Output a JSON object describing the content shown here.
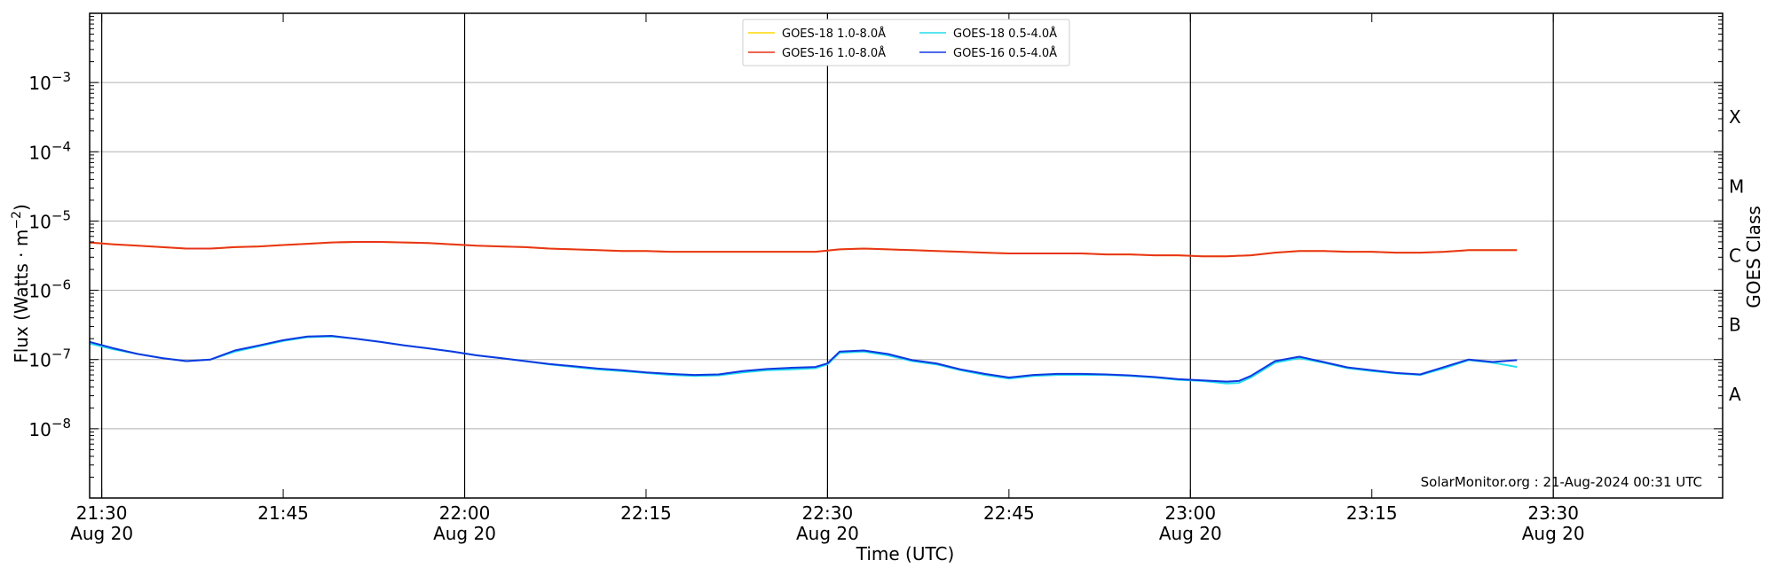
{
  "chart_data": {
    "type": "line",
    "xlabel": "Time (UTC)",
    "ylabel": "Flux (Watts · m",
    "ylabel_sup": "−2",
    "ylabel_close": ")",
    "right_axis_label": "GOES Class",
    "credit": "SolarMonitor.org : 21-Aug-2024 00:31 UTC",
    "y_scale": "log",
    "ylim_exponent": [
      -9,
      -2
    ],
    "xlim": [
      "21:29",
      "23:44"
    ],
    "grid": true,
    "legend_position": "top-center",
    "x_ticks": [
      {
        "t": "21:30",
        "label": "21:30",
        "sublabel": "Aug 20",
        "vline": true
      },
      {
        "t": "21:45",
        "label": "21:45",
        "sublabel": "",
        "vline": false
      },
      {
        "t": "22:00",
        "label": "22:00",
        "sublabel": "Aug 20",
        "vline": true
      },
      {
        "t": "22:15",
        "label": "22:15",
        "sublabel": "",
        "vline": false
      },
      {
        "t": "22:30",
        "label": "22:30",
        "sublabel": "Aug 20",
        "vline": true
      },
      {
        "t": "22:45",
        "label": "22:45",
        "sublabel": "",
        "vline": false
      },
      {
        "t": "23:00",
        "label": "23:00",
        "sublabel": "Aug 20",
        "vline": true
      },
      {
        "t": "23:15",
        "label": "23:15",
        "sublabel": "",
        "vline": false
      },
      {
        "t": "23:30",
        "label": "23:30",
        "sublabel": "Aug 20",
        "vline": true
      }
    ],
    "y_ticks": [
      {
        "exp": -8,
        "base": "10",
        "sup": "−8"
      },
      {
        "exp": -7,
        "base": "10",
        "sup": "−7"
      },
      {
        "exp": -6,
        "base": "10",
        "sup": "−6"
      },
      {
        "exp": -5,
        "base": "10",
        "sup": "−5"
      },
      {
        "exp": -4,
        "base": "10",
        "sup": "−4"
      },
      {
        "exp": -3,
        "base": "10",
        "sup": "−3"
      }
    ],
    "goes_classes": [
      {
        "label": "A",
        "exp": -7.5
      },
      {
        "label": "B",
        "exp": -6.5
      },
      {
        "label": "C",
        "exp": -5.5
      },
      {
        "label": "M",
        "exp": -4.5
      },
      {
        "label": "X",
        "exp": -3.5
      }
    ],
    "series": [
      {
        "name": "GOES-18 1.0-8.0Å",
        "color": "#ffd700",
        "x": [
          "21:29",
          "21:31",
          "21:33",
          "21:35",
          "21:37",
          "21:39",
          "21:41",
          "21:43",
          "21:45",
          "21:47",
          "21:49",
          "21:51",
          "21:53",
          "21:55",
          "21:57",
          "21:59",
          "22:01",
          "22:03",
          "22:05",
          "22:07",
          "22:09",
          "22:11",
          "22:13",
          "22:15",
          "22:17",
          "22:19",
          "22:21",
          "22:23",
          "22:25",
          "22:27",
          "22:29",
          "22:31",
          "22:33",
          "22:35",
          "22:37",
          "22:39",
          "22:41",
          "22:43",
          "22:45",
          "22:47",
          "22:49",
          "22:51",
          "22:53",
          "22:55",
          "22:57",
          "22:59",
          "23:01",
          "23:03",
          "23:05",
          "23:07",
          "23:09",
          "23:11",
          "23:13",
          "23:15",
          "23:17",
          "23:19",
          "23:21",
          "23:23",
          "23:25",
          "23:27"
        ],
        "y": [
          4.9e-06,
          4.6e-06,
          4.4e-06,
          4.2e-06,
          4e-06,
          4e-06,
          4.2e-06,
          4.3e-06,
          4.5e-06,
          4.7e-06,
          4.9e-06,
          5e-06,
          5e-06,
          4.9e-06,
          4.8e-06,
          4.6e-06,
          4.4e-06,
          4.3e-06,
          4.2e-06,
          4e-06,
          3.9e-06,
          3.8e-06,
          3.7e-06,
          3.7e-06,
          3.6e-06,
          3.6e-06,
          3.6e-06,
          3.6e-06,
          3.6e-06,
          3.6e-06,
          3.6e-06,
          3.9e-06,
          4e-06,
          3.9e-06,
          3.8e-06,
          3.7e-06,
          3.6e-06,
          3.5e-06,
          3.4e-06,
          3.4e-06,
          3.4e-06,
          3.4e-06,
          3.3e-06,
          3.3e-06,
          3.2e-06,
          3.2e-06,
          3.1e-06,
          3.1e-06,
          3.2e-06,
          3.5e-06,
          3.7e-06,
          3.7e-06,
          3.6e-06,
          3.6e-06,
          3.5e-06,
          3.5e-06,
          3.6e-06,
          3.8e-06,
          3.8e-06,
          3.8e-06
        ]
      },
      {
        "name": "GOES-16 1.0-8.0Å",
        "color": "#e8341c",
        "x": [
          "21:29",
          "21:31",
          "21:33",
          "21:35",
          "21:37",
          "21:39",
          "21:41",
          "21:43",
          "21:45",
          "21:47",
          "21:49",
          "21:51",
          "21:53",
          "21:55",
          "21:57",
          "21:59",
          "22:01",
          "22:03",
          "22:05",
          "22:07",
          "22:09",
          "22:11",
          "22:13",
          "22:15",
          "22:17",
          "22:19",
          "22:21",
          "22:23",
          "22:25",
          "22:27",
          "22:29",
          "22:31",
          "22:33",
          "22:35",
          "22:37",
          "22:39",
          "22:41",
          "22:43",
          "22:45",
          "22:47",
          "22:49",
          "22:51",
          "22:53",
          "22:55",
          "22:57",
          "22:59",
          "23:01",
          "23:03",
          "23:05",
          "23:07",
          "23:09",
          "23:11",
          "23:13",
          "23:15",
          "23:17",
          "23:19",
          "23:21",
          "23:23",
          "23:25",
          "23:27"
        ],
        "y": [
          4.9e-06,
          4.6e-06,
          4.4e-06,
          4.2e-06,
          4e-06,
          4e-06,
          4.2e-06,
          4.3e-06,
          4.5e-06,
          4.7e-06,
          4.9e-06,
          5e-06,
          5e-06,
          4.9e-06,
          4.8e-06,
          4.6e-06,
          4.4e-06,
          4.3e-06,
          4.2e-06,
          4e-06,
          3.9e-06,
          3.8e-06,
          3.7e-06,
          3.7e-06,
          3.6e-06,
          3.6e-06,
          3.6e-06,
          3.6e-06,
          3.6e-06,
          3.6e-06,
          3.6e-06,
          3.9e-06,
          4e-06,
          3.9e-06,
          3.8e-06,
          3.7e-06,
          3.6e-06,
          3.5e-06,
          3.4e-06,
          3.4e-06,
          3.4e-06,
          3.4e-06,
          3.3e-06,
          3.3e-06,
          3.2e-06,
          3.2e-06,
          3.1e-06,
          3.1e-06,
          3.2e-06,
          3.5e-06,
          3.7e-06,
          3.7e-06,
          3.6e-06,
          3.6e-06,
          3.5e-06,
          3.5e-06,
          3.6e-06,
          3.8e-06,
          3.8e-06,
          3.8e-06
        ]
      },
      {
        "name": "GOES-18 0.5-4.0Å",
        "color": "#22ddee",
        "x": [
          "21:29",
          "21:31",
          "21:33",
          "21:35",
          "21:37",
          "21:39",
          "21:41",
          "21:43",
          "21:45",
          "21:47",
          "21:49",
          "21:51",
          "21:53",
          "21:55",
          "21:57",
          "21:59",
          "22:01",
          "22:03",
          "22:05",
          "22:07",
          "22:09",
          "22:11",
          "22:13",
          "22:15",
          "22:17",
          "22:19",
          "22:21",
          "22:23",
          "22:25",
          "22:27",
          "22:29",
          "22:30",
          "22:31",
          "22:33",
          "22:35",
          "22:37",
          "22:39",
          "22:41",
          "22:43",
          "22:45",
          "22:47",
          "22:49",
          "22:51",
          "22:53",
          "22:55",
          "22:57",
          "22:59",
          "23:01",
          "23:03",
          "23:04",
          "23:05",
          "23:07",
          "23:09",
          "23:11",
          "23:13",
          "23:15",
          "23:17",
          "23:19",
          "23:21",
          "23:23",
          "23:25",
          "23:27"
        ],
        "y": [
          1.7e-07,
          1.4e-07,
          1.2e-07,
          1.05e-07,
          9.5e-08,
          1e-07,
          1.3e-07,
          1.55e-07,
          1.85e-07,
          2.1e-07,
          2.15e-07,
          2e-07,
          1.8e-07,
          1.6e-07,
          1.45e-07,
          1.3e-07,
          1.15e-07,
          1.05e-07,
          9.5e-08,
          8.5e-08,
          7.8e-08,
          7.2e-08,
          6.8e-08,
          6.4e-08,
          6e-08,
          5.8e-08,
          5.9e-08,
          6.5e-08,
          7e-08,
          7.2e-08,
          7.5e-08,
          8.5e-08,
          1.25e-07,
          1.3e-07,
          1.15e-07,
          9.5e-08,
          8.5e-08,
          7e-08,
          6e-08,
          5.3e-08,
          5.8e-08,
          6e-08,
          6e-08,
          6e-08,
          5.8e-08,
          5.5e-08,
          5.1e-08,
          4.9e-08,
          4.5e-08,
          4.6e-08,
          5.5e-08,
          9e-08,
          1.05e-07,
          9e-08,
          7.5e-08,
          6.8e-08,
          6.3e-08,
          6e-08,
          7.5e-08,
          9.8e-08,
          9e-08,
          7.8e-08
        ]
      },
      {
        "name": "GOES-16 0.5-4.0Å",
        "color": "#1038e0",
        "x": [
          "21:29",
          "21:31",
          "21:33",
          "21:35",
          "21:37",
          "21:39",
          "21:41",
          "21:43",
          "21:45",
          "21:47",
          "21:49",
          "21:51",
          "21:53",
          "21:55",
          "21:57",
          "21:59",
          "22:01",
          "22:03",
          "22:05",
          "22:07",
          "22:09",
          "22:11",
          "22:13",
          "22:15",
          "22:17",
          "22:19",
          "22:21",
          "22:23",
          "22:25",
          "22:27",
          "22:29",
          "22:30",
          "22:31",
          "22:33",
          "22:35",
          "22:37",
          "22:39",
          "22:41",
          "22:43",
          "22:45",
          "22:47",
          "22:49",
          "22:51",
          "22:53",
          "22:55",
          "22:57",
          "22:59",
          "23:01",
          "23:03",
          "23:04",
          "23:05",
          "23:07",
          "23:09",
          "23:11",
          "23:13",
          "23:15",
          "23:17",
          "23:19",
          "23:21",
          "23:23",
          "23:25",
          "23:27"
        ],
        "y": [
          1.8e-07,
          1.45e-07,
          1.2e-07,
          1.05e-07,
          9.5e-08,
          1e-07,
          1.35e-07,
          1.6e-07,
          1.9e-07,
          2.15e-07,
          2.2e-07,
          2e-07,
          1.8e-07,
          1.6e-07,
          1.45e-07,
          1.3e-07,
          1.15e-07,
          1.05e-07,
          9.5e-08,
          8.6e-08,
          8e-08,
          7.4e-08,
          7e-08,
          6.5e-08,
          6.2e-08,
          6e-08,
          6.1e-08,
          6.8e-08,
          7.3e-08,
          7.6e-08,
          7.8e-08,
          8.8e-08,
          1.3e-07,
          1.35e-07,
          1.2e-07,
          9.8e-08,
          8.8e-08,
          7.2e-08,
          6.2e-08,
          5.5e-08,
          6e-08,
          6.2e-08,
          6.2e-08,
          6.1e-08,
          5.9e-08,
          5.6e-08,
          5.2e-08,
          5e-08,
          4.8e-08,
          4.9e-08,
          5.8e-08,
          9.5e-08,
          1.1e-07,
          9.2e-08,
          7.7e-08,
          7e-08,
          6.4e-08,
          6.1e-08,
          7.8e-08,
          1e-07,
          9.2e-08,
          9.8e-08
        ]
      }
    ]
  }
}
